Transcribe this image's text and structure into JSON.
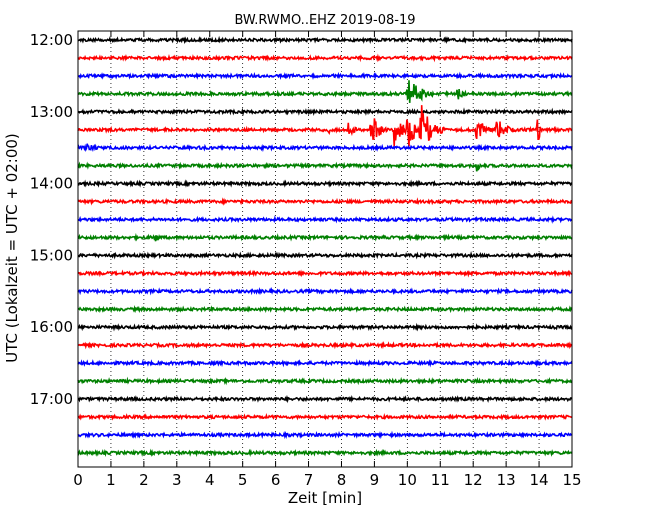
{
  "chart_data": {
    "type": "line",
    "title": "BW.RWMO..EHZ 2019-08-19",
    "xlabel": "Zeit  [min]",
    "ylabel": "UTC (Lokalzeit = UTC + 02:00)",
    "xlim": [
      0,
      15
    ],
    "x_ticks": [
      "0",
      "1",
      "2",
      "3",
      "4",
      "5",
      "6",
      "7",
      "8",
      "9",
      "10",
      "11",
      "12",
      "13",
      "14",
      "15"
    ],
    "y_tick_labels": [
      "12:00",
      "13:00",
      "14:00",
      "15:00",
      "16:00",
      "17:00"
    ],
    "grid": "vertical dotted lines at each minute",
    "trace_interval_min": 15,
    "trace_colors": [
      "#000000",
      "#ff0000",
      "#0000ff",
      "#008000"
    ],
    "traces": [
      {
        "start": "12:00",
        "events": []
      },
      {
        "start": "12:15",
        "events": []
      },
      {
        "start": "12:30",
        "events": []
      },
      {
        "start": "12:45",
        "events": [
          {
            "t": 10.0,
            "dur": 0.9,
            "amp": 16
          },
          {
            "t": 11.5,
            "dur": 0.4,
            "amp": 8
          }
        ]
      },
      {
        "start": "13:00",
        "events": []
      },
      {
        "start": "13:15",
        "events": [
          {
            "t": 7.6,
            "dur": 0.15,
            "amp": 5
          },
          {
            "t": 8.2,
            "dur": 0.4,
            "amp": 8
          },
          {
            "t": 8.9,
            "dur": 0.5,
            "amp": 18
          },
          {
            "t": 9.6,
            "dur": 0.5,
            "amp": 20
          },
          {
            "t": 10.0,
            "dur": 0.5,
            "amp": 22
          },
          {
            "t": 10.4,
            "dur": 0.7,
            "amp": 28
          },
          {
            "t": 12.1,
            "dur": 0.5,
            "amp": 14
          },
          {
            "t": 12.7,
            "dur": 0.6,
            "amp": 13
          },
          {
            "t": 13.95,
            "dur": 0.12,
            "amp": 24
          }
        ]
      },
      {
        "start": "13:30",
        "events": [
          {
            "t": 0.25,
            "dur": 0.5,
            "amp": 7
          }
        ]
      },
      {
        "start": "13:45",
        "events": [
          {
            "t": 12.1,
            "dur": 0.2,
            "amp": 8
          }
        ]
      },
      {
        "start": "14:00",
        "events": []
      },
      {
        "start": "14:15",
        "events": []
      },
      {
        "start": "14:30",
        "events": []
      },
      {
        "start": "14:45",
        "events": [
          {
            "t": 2.3,
            "dur": 0.3,
            "amp": 7
          }
        ]
      },
      {
        "start": "15:00",
        "events": []
      },
      {
        "start": "15:15",
        "events": []
      },
      {
        "start": "15:30",
        "events": []
      },
      {
        "start": "15:45",
        "events": []
      },
      {
        "start": "16:00",
        "events": []
      },
      {
        "start": "16:15",
        "events": []
      },
      {
        "start": "16:30",
        "events": []
      },
      {
        "start": "16:45",
        "events": []
      },
      {
        "start": "17:00",
        "events": []
      },
      {
        "start": "17:15",
        "events": []
      },
      {
        "start": "17:30",
        "events": []
      },
      {
        "start": "17:45",
        "events": []
      }
    ]
  }
}
